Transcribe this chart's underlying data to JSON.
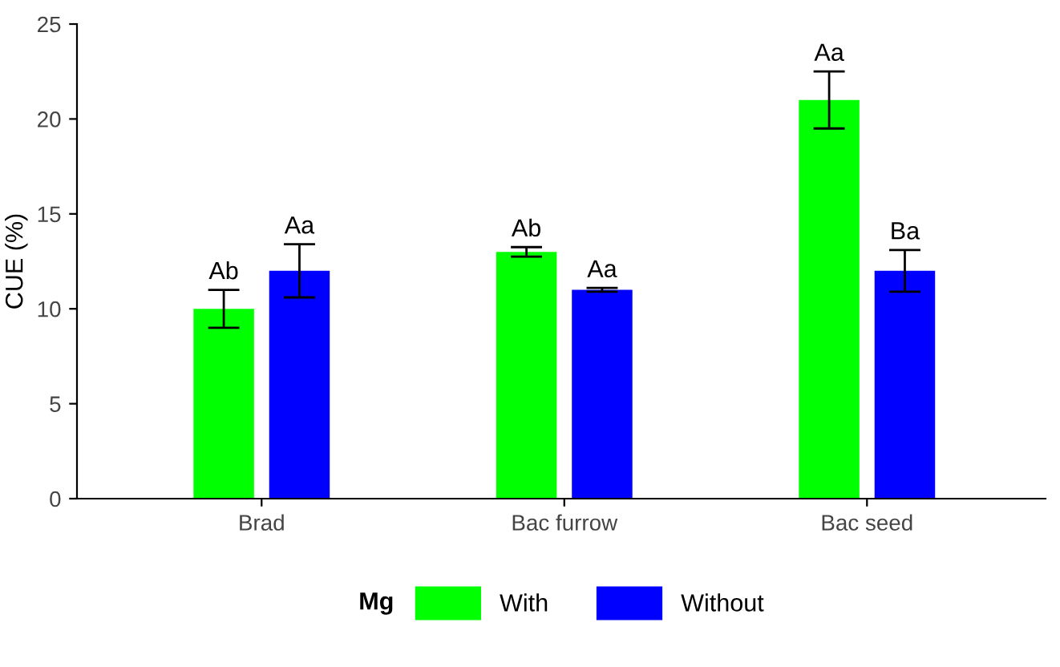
{
  "chart_data": {
    "type": "bar",
    "ylabel": "CUE (%)",
    "legend_title": "Mg",
    "legend": "bottom",
    "categories": [
      "Brad",
      "Bac furrow",
      "Bac seed"
    ],
    "series": [
      {
        "name": "With",
        "color": "#00ff00",
        "values": [
          10,
          13,
          21
        ],
        "errors": [
          1,
          0.25,
          1.5
        ],
        "value_labels": [
          "Ab",
          "Ab",
          "Aa"
        ]
      },
      {
        "name": "Without",
        "color": "#0000ff",
        "values": [
          12,
          11,
          12
        ],
        "errors": [
          1.4,
          0.1,
          1.1
        ],
        "value_labels": [
          "Aa",
          "Aa",
          "Ba"
        ]
      }
    ],
    "ylim": [
      0,
      25
    ],
    "yticks": [
      0,
      5,
      10,
      15,
      20,
      25
    ],
    "grid": false
  }
}
